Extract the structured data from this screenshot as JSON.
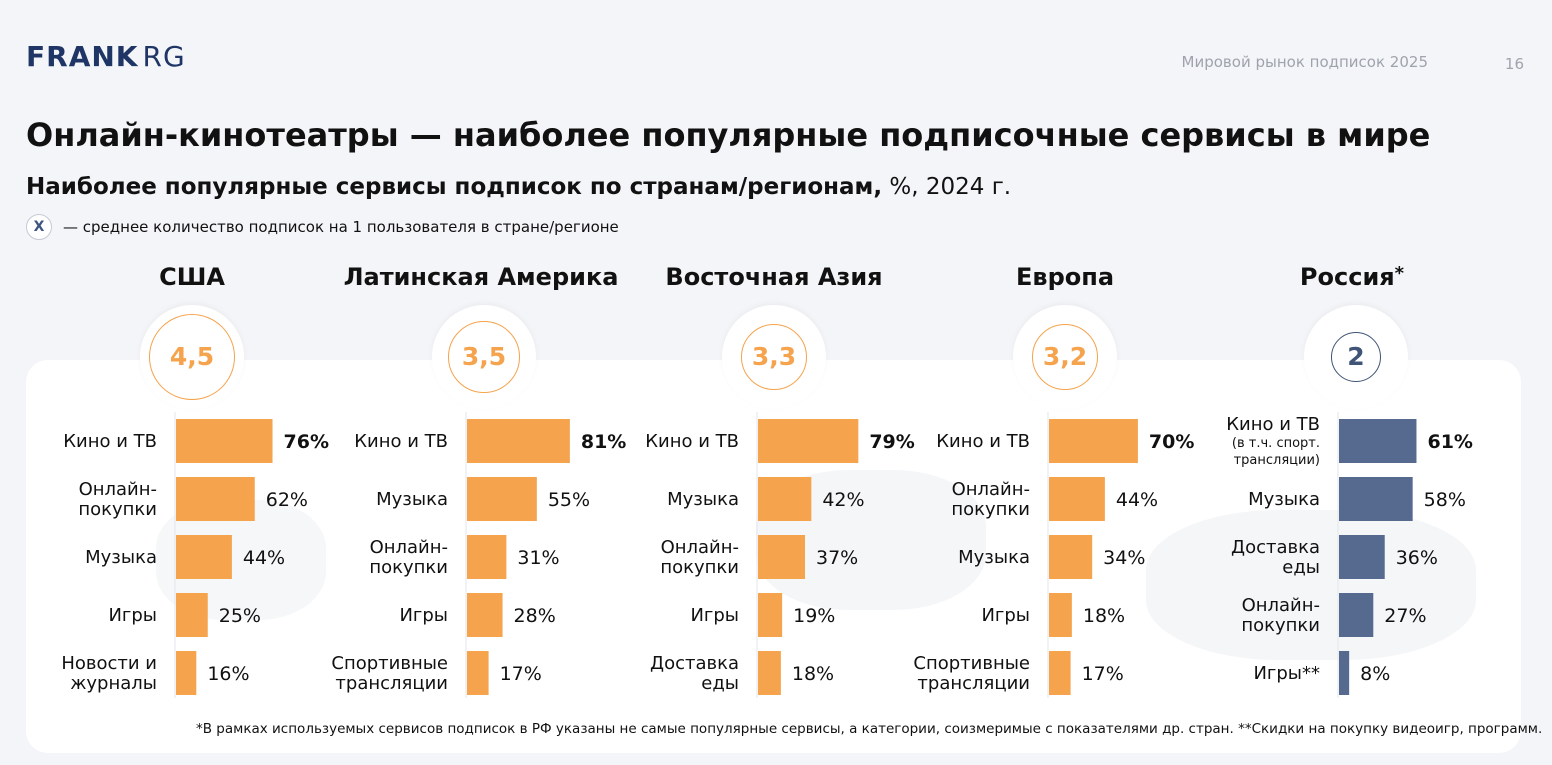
{
  "header": {
    "logo_bold": "FRANK",
    "logo_light": "RG",
    "doc_title": "Мировой рынок подписок 2025",
    "page_number": "16"
  },
  "title": "Онлайн-кинотеатры — наиболее популярные подписочные сервисы в мире",
  "subtitle": {
    "bold": "Наиболее популярные сервисы подписок по странам/регионам,",
    "rest": " %, 2024 г."
  },
  "legend": {
    "symbol": "X",
    "text": "— среднее количество подписок на 1 пользователя в стране/регионе"
  },
  "colors": {
    "orange": "#f5a34d",
    "blue": "#56698e",
    "badge_blue": "#3f5476"
  },
  "chart_data": [
    {
      "type": "bar",
      "title": "США",
      "subscriptions_per_user": "4,5",
      "categories": [
        "Кино и ТВ",
        "Онлайн-покупки",
        "Музыка",
        "Игры",
        "Новости и журналы"
      ],
      "labels": [
        [
          "Кино и ТВ"
        ],
        [
          "Онлайн-",
          "покупки"
        ],
        [
          "Музыка"
        ],
        [
          "Игры"
        ],
        [
          "Новости и",
          "журналы"
        ]
      ],
      "values": [
        76,
        62,
        44,
        25,
        16
      ],
      "value_labels": [
        "76%",
        "62%",
        "44%",
        "25%",
        "16%"
      ],
      "color": "orange"
    },
    {
      "type": "bar",
      "title": "Латинская Америка",
      "subscriptions_per_user": "3,5",
      "categories": [
        "Кино и ТВ",
        "Музыка",
        "Онлайн-покупки",
        "Игры",
        "Спортивные трансляции"
      ],
      "labels": [
        [
          "Кино и ТВ"
        ],
        [
          "Музыка"
        ],
        [
          "Онлайн-",
          "покупки"
        ],
        [
          "Игры"
        ],
        [
          "Спортивные",
          "трансляции"
        ]
      ],
      "values": [
        81,
        55,
        31,
        28,
        17
      ],
      "value_labels": [
        "81%",
        "55%",
        "31%",
        "28%",
        "17%"
      ],
      "color": "orange"
    },
    {
      "type": "bar",
      "title": "Восточная Азия",
      "subscriptions_per_user": "3,3",
      "categories": [
        "Кино и ТВ",
        "Музыка",
        "Онлайн-покупки",
        "Игры",
        "Доставка еды"
      ],
      "labels": [
        [
          "Кино и ТВ"
        ],
        [
          "Музыка"
        ],
        [
          "Онлайн-",
          "покупки"
        ],
        [
          "Игры"
        ],
        [
          "Доставка",
          "еды"
        ]
      ],
      "values": [
        79,
        42,
        37,
        19,
        18
      ],
      "value_labels": [
        "79%",
        "42%",
        "37%",
        "19%",
        "18%"
      ],
      "color": "orange"
    },
    {
      "type": "bar",
      "title": "Европа",
      "subscriptions_per_user": "3,2",
      "categories": [
        "Кино и ТВ",
        "Онлайн-покупки",
        "Музыка",
        "Игры",
        "Спортивные трансляции"
      ],
      "labels": [
        [
          "Кино и ТВ"
        ],
        [
          "Онлайн-",
          "покупки"
        ],
        [
          "Музыка"
        ],
        [
          "Игры"
        ],
        [
          "Спортивные",
          "трансляции"
        ]
      ],
      "values": [
        70,
        44,
        34,
        18,
        17
      ],
      "value_labels": [
        "70%",
        "44%",
        "34%",
        "18%",
        "17%"
      ],
      "color": "orange"
    },
    {
      "type": "bar",
      "title": "Россия",
      "title_mark": "*",
      "subscriptions_per_user": "2",
      "categories": [
        "Кино и ТВ (в т.ч. спорт. трансляции)",
        "Музыка",
        "Доставка еды",
        "Онлайн-покупки",
        "Игры**"
      ],
      "labels": [
        [
          "Кино и ТВ",
          "(в т.ч. спорт.",
          "трансляции)"
        ],
        [
          "Музыка"
        ],
        [
          "Доставка",
          "еды"
        ],
        [
          "Онлайн-",
          "покупки"
        ],
        [
          "Игры**"
        ]
      ],
      "values": [
        61,
        58,
        36,
        27,
        8
      ],
      "value_labels": [
        "61%",
        "58%",
        "36%",
        "27%",
        "8%"
      ],
      "color": "blue"
    }
  ],
  "footnote": "*В рамках используемых сервисов подписок в РФ указаны не самые популярные сервисы, а категории, соизмеримые с показателями др. стран. **Скидки на покупку видеоигр, программ."
}
